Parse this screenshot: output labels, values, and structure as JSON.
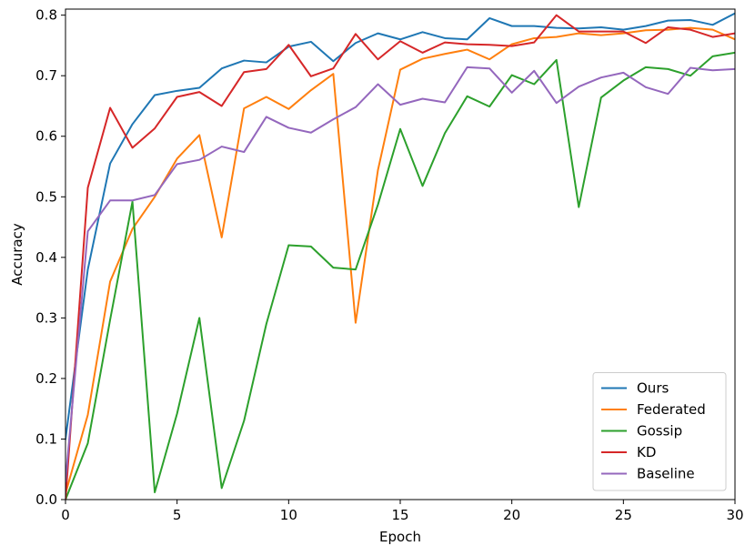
{
  "chart_data": {
    "type": "line",
    "title": "",
    "xlabel": "Epoch",
    "ylabel": "Accuracy",
    "xlim": [
      0,
      30
    ],
    "ylim": [
      0.0,
      0.81
    ],
    "x_ticks": [
      0,
      5,
      10,
      15,
      20,
      25,
      30
    ],
    "y_ticks": [
      0.0,
      0.1,
      0.2,
      0.3,
      0.4,
      0.5,
      0.6,
      0.7,
      0.8
    ],
    "grid": false,
    "legend_position": "lower right",
    "x": [
      0,
      1,
      2,
      3,
      4,
      5,
      6,
      7,
      8,
      9,
      10,
      11,
      12,
      13,
      14,
      15,
      16,
      17,
      18,
      19,
      20,
      21,
      22,
      23,
      24,
      25,
      26,
      27,
      28,
      29,
      30
    ],
    "series": [
      {
        "name": "Ours",
        "color": "#1f77b4",
        "values": [
          0.1,
          0.38,
          0.555,
          0.62,
          0.668,
          0.675,
          0.68,
          0.712,
          0.725,
          0.722,
          0.748,
          0.756,
          0.724,
          0.754,
          0.77,
          0.76,
          0.772,
          0.762,
          0.76,
          0.795,
          0.782,
          0.782,
          0.779,
          0.778,
          0.78,
          0.776,
          0.782,
          0.791,
          0.792,
          0.784,
          0.803
        ]
      },
      {
        "name": "Federated",
        "color": "#ff7f0e",
        "values": [
          0.01,
          0.14,
          0.36,
          0.447,
          0.5,
          0.563,
          0.602,
          0.433,
          0.646,
          0.665,
          0.645,
          0.676,
          0.703,
          0.292,
          0.544,
          0.71,
          0.728,
          0.736,
          0.743,
          0.727,
          0.752,
          0.762,
          0.764,
          0.77,
          0.767,
          0.77,
          0.775,
          0.776,
          0.779,
          0.776,
          0.76
        ]
      },
      {
        "name": "Gossip",
        "color": "#2ca02c",
        "values": [
          0.0,
          0.093,
          0.297,
          0.492,
          0.012,
          0.142,
          0.3,
          0.019,
          0.13,
          0.29,
          0.42,
          0.418,
          0.383,
          0.38,
          0.487,
          0.612,
          0.518,
          0.605,
          0.666,
          0.649,
          0.701,
          0.686,
          0.726,
          0.483,
          0.664,
          0.692,
          0.714,
          0.711,
          0.7,
          0.732,
          0.738
        ]
      },
      {
        "name": "KD",
        "color": "#d62728",
        "values": [
          0.0,
          0.515,
          0.647,
          0.581,
          0.613,
          0.665,
          0.673,
          0.65,
          0.706,
          0.711,
          0.751,
          0.699,
          0.712,
          0.769,
          0.727,
          0.757,
          0.738,
          0.755,
          0.752,
          0.751,
          0.749,
          0.755,
          0.8,
          0.773,
          0.773,
          0.773,
          0.754,
          0.78,
          0.776,
          0.764,
          0.77
        ]
      },
      {
        "name": "Baseline",
        "color": "#9467bd",
        "values": [
          0.03,
          0.443,
          0.494,
          0.494,
          0.503,
          0.554,
          0.561,
          0.583,
          0.574,
          0.632,
          0.614,
          0.606,
          0.628,
          0.648,
          0.686,
          0.652,
          0.662,
          0.656,
          0.714,
          0.712,
          0.672,
          0.708,
          0.655,
          0.682,
          0.697,
          0.705,
          0.681,
          0.67,
          0.713,
          0.709,
          0.711
        ]
      }
    ]
  }
}
